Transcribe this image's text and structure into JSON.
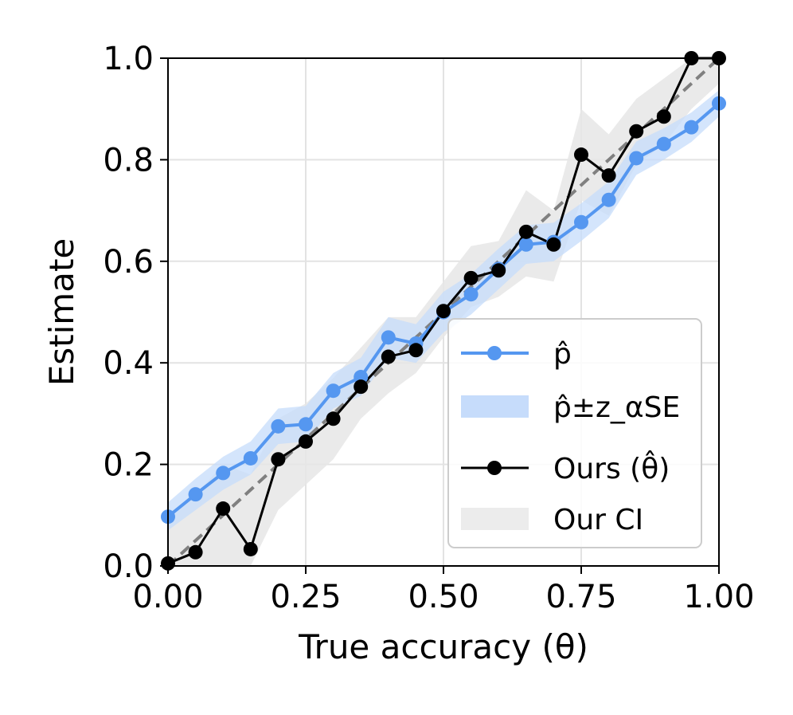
{
  "chart_data": {
    "type": "line",
    "xlabel": "True accuracy (θ)",
    "ylabel": "Estimate",
    "xlim": [
      0,
      1
    ],
    "ylim": [
      0,
      1
    ],
    "grid": true,
    "legend_position": "lower-right",
    "x_ticks": [
      "0.00",
      "0.25",
      "0.50",
      "0.75",
      "1.00"
    ],
    "y_ticks": [
      "0.0",
      "0.2",
      "0.4",
      "0.6",
      "0.8",
      "1.0"
    ],
    "x": [
      0.0,
      0.05,
      0.1,
      0.15,
      0.2,
      0.25,
      0.3,
      0.35,
      0.4,
      0.45,
      0.5,
      0.55,
      0.6,
      0.65,
      0.7,
      0.75,
      0.8,
      0.85,
      0.9,
      0.95,
      1.0
    ],
    "series": [
      {
        "name": "p̂",
        "color": "#5597f0",
        "values": [
          0.097,
          0.141,
          0.183,
          0.212,
          0.275,
          0.279,
          0.345,
          0.372,
          0.45,
          0.438,
          0.5,
          0.535,
          0.585,
          0.633,
          0.638,
          0.677,
          0.721,
          0.803,
          0.831,
          0.864,
          0.911
        ],
        "band_lower": [
          0.07,
          0.11,
          0.15,
          0.18,
          0.24,
          0.245,
          0.31,
          0.335,
          0.41,
          0.4,
          0.46,
          0.495,
          0.545,
          0.595,
          0.6,
          0.64,
          0.685,
          0.77,
          0.8,
          0.835,
          0.885
        ],
        "band_upper": [
          0.125,
          0.172,
          0.215,
          0.245,
          0.31,
          0.315,
          0.38,
          0.41,
          0.49,
          0.476,
          0.54,
          0.575,
          0.625,
          0.671,
          0.676,
          0.714,
          0.757,
          0.836,
          0.862,
          0.893,
          0.937
        ]
      },
      {
        "name": "Ours (θ̂)",
        "color": "#000000",
        "values": [
          0.005,
          0.027,
          0.113,
          0.033,
          0.21,
          0.245,
          0.29,
          0.353,
          0.412,
          0.425,
          0.502,
          0.567,
          0.582,
          0.658,
          0.633,
          0.81,
          0.769,
          0.856,
          0.885,
          1.0,
          1.0
        ],
        "ci_lower": [
          0.0,
          0.0,
          0.0,
          0.0,
          0.11,
          0.16,
          0.21,
          0.29,
          0.34,
          0.38,
          0.45,
          0.51,
          0.53,
          0.57,
          0.56,
          0.72,
          0.69,
          0.79,
          0.83,
          0.9,
          0.95
        ],
        "ci_upper": [
          0.09,
          0.14,
          0.2,
          0.18,
          0.29,
          0.32,
          0.37,
          0.43,
          0.49,
          0.49,
          0.56,
          0.63,
          0.64,
          0.74,
          0.7,
          0.9,
          0.85,
          0.92,
          0.96,
          1.0,
          1.0
        ]
      }
    ],
    "reference_line": {
      "from": [
        0,
        0
      ],
      "to": [
        1,
        1
      ],
      "style": "dashed",
      "color": "#808080"
    },
    "legend": [
      {
        "label": "p̂",
        "kind": "line-marker",
        "color": "#5597f0"
      },
      {
        "label": "p̂±z_αSE",
        "kind": "band",
        "color": "#c6dcfb"
      },
      {
        "label": "Ours (θ̂)",
        "kind": "line-marker",
        "color": "#000000"
      },
      {
        "label": "Our CI",
        "kind": "band",
        "color": "#ececec"
      }
    ]
  }
}
